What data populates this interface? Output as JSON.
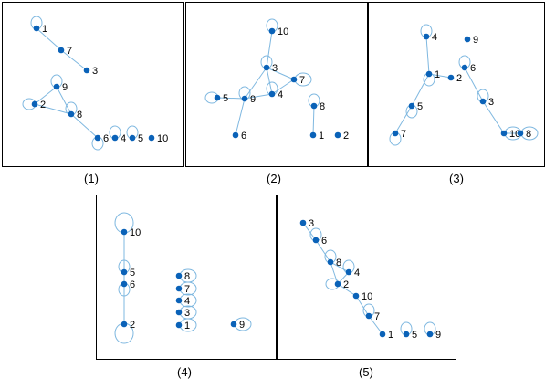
{
  "colors": {
    "node": "#0a62b8",
    "edge": "#7fb8e0",
    "frame": "#000000",
    "label": "#000000"
  },
  "graphs": [
    {
      "caption": "(1)",
      "edges": [
        [
          "1",
          "7"
        ],
        [
          "7",
          "3"
        ],
        [
          "9",
          "2"
        ],
        [
          "2",
          "8"
        ],
        [
          "8",
          "9"
        ],
        [
          "8",
          "6"
        ]
      ],
      "loops": [
        "1",
        "9",
        "2",
        "8",
        "6",
        "4",
        "5"
      ],
      "nodes": [
        {
          "id": "1",
          "label": "1"
        },
        {
          "id": "7",
          "label": "7"
        },
        {
          "id": "3",
          "label": "3"
        },
        {
          "id": "9",
          "label": "9"
        },
        {
          "id": "2",
          "label": "2"
        },
        {
          "id": "8",
          "label": "8"
        },
        {
          "id": "6",
          "label": "6"
        },
        {
          "id": "4",
          "label": "4"
        },
        {
          "id": "5",
          "label": "5"
        },
        {
          "id": "10",
          "label": "10"
        }
      ]
    },
    {
      "caption": "(2)",
      "edges": [
        [
          "10",
          "3"
        ],
        [
          "3",
          "9"
        ],
        [
          "3",
          "4"
        ],
        [
          "3",
          "7"
        ],
        [
          "7",
          "4"
        ],
        [
          "9",
          "4"
        ],
        [
          "9",
          "6"
        ],
        [
          "9",
          "5"
        ],
        [
          "8",
          "1"
        ]
      ],
      "loops": [
        "10",
        "5",
        "9",
        "4",
        "7",
        "3",
        "8"
      ],
      "nodes": [
        {
          "id": "10",
          "label": "10"
        },
        {
          "id": "3",
          "label": "3"
        },
        {
          "id": "7",
          "label": "7"
        },
        {
          "id": "5",
          "label": "5"
        },
        {
          "id": "9",
          "label": "9"
        },
        {
          "id": "4",
          "label": "4"
        },
        {
          "id": "8",
          "label": "8"
        },
        {
          "id": "6",
          "label": "6"
        },
        {
          "id": "1",
          "label": "1"
        },
        {
          "id": "2",
          "label": "2"
        }
      ]
    },
    {
      "caption": "(3)",
      "edges": [
        [
          "4",
          "1"
        ],
        [
          "1",
          "2"
        ],
        [
          "1",
          "5"
        ],
        [
          "5",
          "7"
        ],
        [
          "6",
          "3"
        ],
        [
          "3",
          "10"
        ],
        [
          "10",
          "8"
        ]
      ],
      "loops": [
        "4",
        "1",
        "6",
        "3",
        "5",
        "7",
        "10",
        "8"
      ],
      "nodes": [
        {
          "id": "4",
          "label": "4"
        },
        {
          "id": "9",
          "label": "9"
        },
        {
          "id": "6",
          "label": "6"
        },
        {
          "id": "1",
          "label": "1"
        },
        {
          "id": "2",
          "label": "2"
        },
        {
          "id": "5",
          "label": "5"
        },
        {
          "id": "3",
          "label": "3"
        },
        {
          "id": "7",
          "label": "7"
        },
        {
          "id": "10",
          "label": "10"
        },
        {
          "id": "8",
          "label": "8"
        }
      ]
    },
    {
      "caption": "(4)",
      "edges": [
        [
          "10",
          "5"
        ],
        [
          "5",
          "6"
        ],
        [
          "6",
          "2"
        ]
      ],
      "loops": [
        "10",
        "5",
        "6",
        "2",
        "8",
        "7",
        "4",
        "3",
        "1",
        "9"
      ],
      "nodes": [
        {
          "id": "10",
          "label": "10"
        },
        {
          "id": "5",
          "label": "5"
        },
        {
          "id": "6",
          "label": "6"
        },
        {
          "id": "2",
          "label": "2"
        },
        {
          "id": "8",
          "label": "8"
        },
        {
          "id": "7",
          "label": "7"
        },
        {
          "id": "4",
          "label": "4"
        },
        {
          "id": "3",
          "label": "3"
        },
        {
          "id": "1",
          "label": "1"
        },
        {
          "id": "9",
          "label": "9"
        }
      ]
    },
    {
      "caption": "(5)",
      "edges": [
        [
          "3",
          "6"
        ],
        [
          "6",
          "8"
        ],
        [
          "8",
          "2"
        ],
        [
          "8",
          "4"
        ],
        [
          "4",
          "2"
        ],
        [
          "2",
          "10"
        ],
        [
          "10",
          "7"
        ],
        [
          "7",
          "1"
        ]
      ],
      "loops": [
        "6",
        "8",
        "4",
        "2",
        "7",
        "5",
        "9"
      ],
      "nodes": [
        {
          "id": "3",
          "label": "3"
        },
        {
          "id": "6",
          "label": "6"
        },
        {
          "id": "8",
          "label": "8"
        },
        {
          "id": "4",
          "label": "4"
        },
        {
          "id": "2",
          "label": "2"
        },
        {
          "id": "10",
          "label": "10"
        },
        {
          "id": "7",
          "label": "7"
        },
        {
          "id": "1",
          "label": "1"
        },
        {
          "id": "5",
          "label": "5"
        },
        {
          "id": "9",
          "label": "9"
        }
      ]
    }
  ]
}
